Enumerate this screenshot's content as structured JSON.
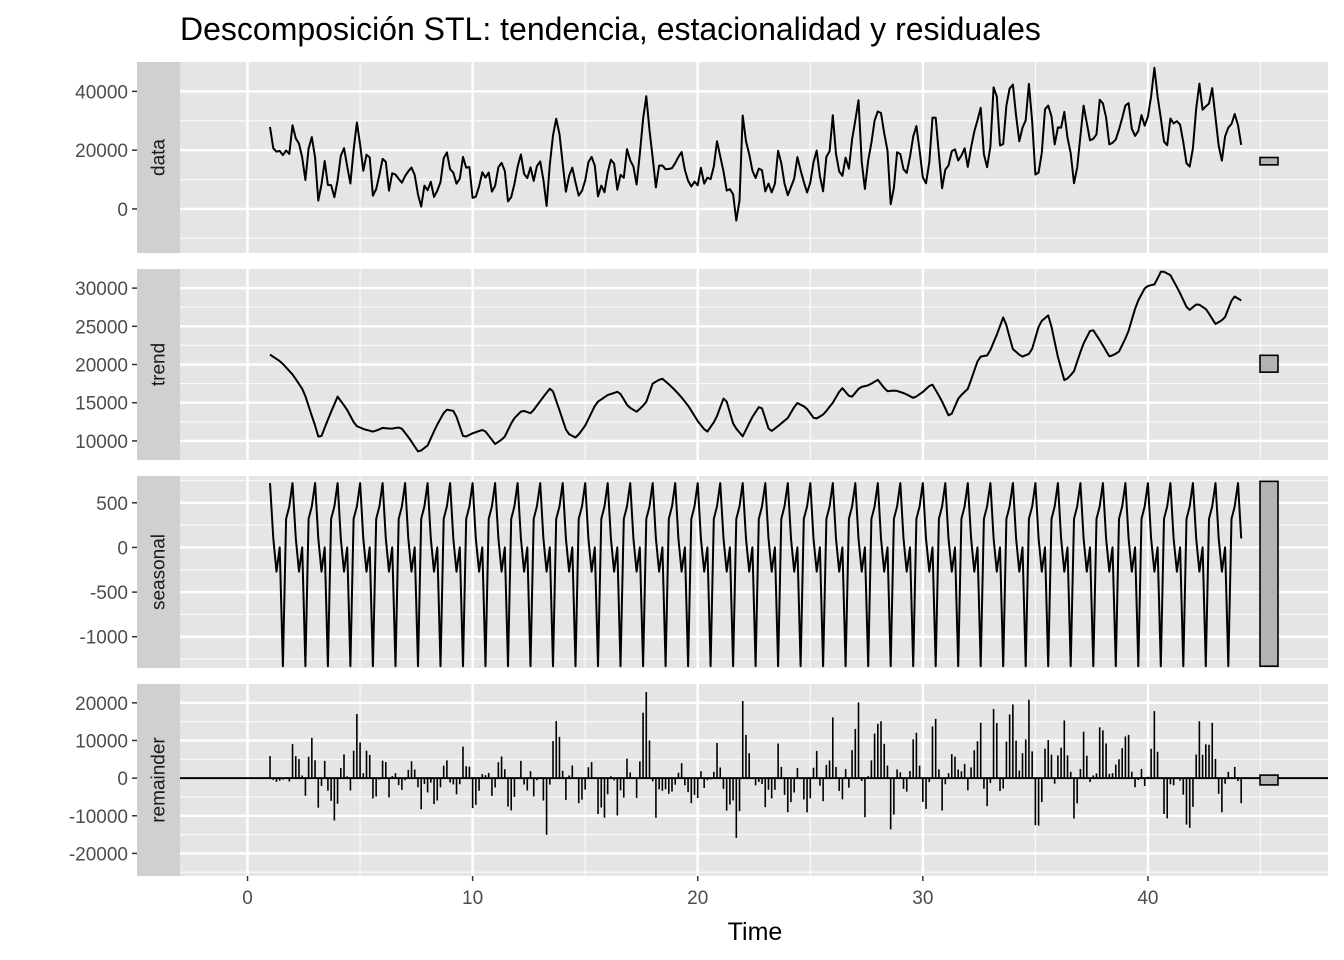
{
  "chart_data": {
    "type": "line",
    "title": "Descomposición STL: tendencia, estacionalidad y residuales",
    "xlabel": "Time",
    "xlim": [
      -3,
      48
    ],
    "x_ticks": [
      0,
      10,
      20,
      30,
      40
    ],
    "frequency": 7,
    "x_start": 1,
    "n_points": 303,
    "grid": true,
    "theme": "ggplot2 grey",
    "colors": {
      "panel_bg": "#e5e5e5",
      "grid": "#ffffff",
      "strip_bg": "#d0d0d0",
      "line": "#000000",
      "range_bar": "#b3b3b3",
      "tick": "#333333"
    },
    "panels": [
      {
        "name": "data",
        "ylim": [
          -15000,
          50000
        ],
        "y_ticks": [
          0,
          20000,
          40000
        ],
        "range_bar": [
          15000,
          17500
        ],
        "knots": [
          [
            1,
            26500
          ],
          [
            1.4,
            15000
          ],
          [
            1.7,
            18000
          ],
          [
            2,
            25000
          ],
          [
            2.3,
            19000
          ],
          [
            2.6,
            10500
          ],
          [
            2.9,
            30000
          ],
          [
            3.1,
            3500
          ],
          [
            3.4,
            15500
          ],
          [
            3.6,
            3000
          ],
          [
            4,
            10000
          ],
          [
            4.3,
            22500
          ],
          [
            4.6,
            8500
          ],
          [
            4.9,
            29000
          ],
          [
            5.2,
            10000
          ],
          [
            5.4,
            23000
          ],
          [
            5.6,
            5000
          ],
          [
            6,
            17000
          ],
          [
            6.3,
            6000
          ],
          [
            6.6,
            15000
          ],
          [
            6.9,
            4000
          ],
          [
            7.2,
            17000
          ],
          [
            7.6,
            2000
          ],
          [
            8,
            10000
          ],
          [
            8.4,
            3000
          ],
          [
            8.8,
            22500
          ],
          [
            9.2,
            6000
          ],
          [
            9.6,
            21000
          ],
          [
            10.1,
            5000
          ],
          [
            10.5,
            15000
          ],
          [
            10.9,
            5000
          ],
          [
            11.3,
            15000
          ],
          [
            11.7,
            3000
          ],
          [
            12.1,
            18000
          ],
          [
            12.5,
            9000
          ],
          [
            12.9,
            15000
          ],
          [
            13.3,
            5000
          ],
          [
            13.7,
            32500
          ],
          [
            14.1,
            7500
          ],
          [
            14.5,
            10000
          ],
          [
            14.9,
            5000
          ],
          [
            15.3,
            17500
          ],
          [
            15.7,
            3500
          ],
          [
            16.1,
            18500
          ],
          [
            16.5,
            6000
          ],
          [
            16.9,
            19000
          ],
          [
            17.3,
            12500
          ],
          [
            17.7,
            36500
          ],
          [
            18.1,
            5000
          ],
          [
            18.5,
            19000
          ],
          [
            18.9,
            13000
          ],
          [
            19.3,
            18000
          ],
          [
            19.7,
            3500
          ],
          [
            20.1,
            14000
          ],
          [
            20.5,
            8000
          ],
          [
            20.9,
            23000
          ],
          [
            21.3,
            8000
          ],
          [
            21.6,
            8500
          ],
          [
            21.8,
            -14000
          ],
          [
            22,
            30000
          ],
          [
            22.4,
            10000
          ],
          [
            22.8,
            15000
          ],
          [
            23.2,
            3500
          ],
          [
            23.6,
            20000
          ],
          [
            24,
            8000
          ],
          [
            24.4,
            16000
          ],
          [
            24.8,
            5000
          ],
          [
            25.2,
            18000
          ],
          [
            25.6,
            9000
          ],
          [
            26,
            27500
          ],
          [
            26.4,
            10000
          ],
          [
            26.8,
            17500
          ],
          [
            27.1,
            39000
          ],
          [
            27.4,
            5000
          ],
          [
            27.8,
            27000
          ],
          [
            28.2,
            36000
          ],
          [
            28.6,
            3500
          ],
          [
            28.9,
            22000
          ],
          [
            29.3,
            10000
          ],
          [
            29.7,
            30500
          ],
          [
            30.1,
            5000
          ],
          [
            30.5,
            32000
          ],
          [
            30.9,
            5000
          ],
          [
            31.3,
            24500
          ],
          [
            31.7,
            14000
          ],
          [
            32.1,
            20000
          ],
          [
            32.5,
            36000
          ],
          [
            32.9,
            7000
          ],
          [
            33.2,
            44000
          ],
          [
            33.5,
            15000
          ],
          [
            33.9,
            46000
          ],
          [
            34.3,
            21000
          ],
          [
            34.7,
            40000
          ],
          [
            35.1,
            8000
          ],
          [
            35.5,
            36000
          ],
          [
            35.9,
            20000
          ],
          [
            36.3,
            37000
          ],
          [
            36.7,
            5000
          ],
          [
            37.1,
            33500
          ],
          [
            37.5,
            19000
          ],
          [
            37.9,
            36000
          ],
          [
            38.3,
            24000
          ],
          [
            38.7,
            29000
          ],
          [
            39.1,
            37500
          ],
          [
            39.5,
            24000
          ],
          [
            39.9,
            32000
          ],
          [
            40.3,
            46000
          ],
          [
            40.7,
            22000
          ],
          [
            41.1,
            30000
          ],
          [
            41.5,
            27000
          ],
          [
            41.9,
            12000
          ],
          [
            42.3,
            44500
          ],
          [
            42.6,
            29000
          ],
          [
            42.9,
            40000
          ],
          [
            43.3,
            14000
          ],
          [
            43.6,
            30000
          ],
          [
            44,
            27000
          ],
          [
            44.4,
            13000
          ]
        ]
      },
      {
        "name": "trend",
        "ylim": [
          7500,
          32500
        ],
        "y_ticks": [
          10000,
          15000,
          20000,
          25000,
          30000
        ],
        "range_bar": [
          19000,
          21200
        ],
        "knots": [
          [
            1,
            21300
          ],
          [
            1.5,
            20300
          ],
          [
            2,
            18700
          ],
          [
            2.5,
            16500
          ],
          [
            3,
            12000
          ],
          [
            3.2,
            10000
          ],
          [
            3.6,
            13000
          ],
          [
            4,
            15800
          ],
          [
            4.4,
            14200
          ],
          [
            4.8,
            12000
          ],
          [
            5.2,
            11500
          ],
          [
            5.6,
            11200
          ],
          [
            6,
            11700
          ],
          [
            6.4,
            11600
          ],
          [
            6.8,
            11800
          ],
          [
            7.2,
            10300
          ],
          [
            7.6,
            8500
          ],
          [
            8,
            9400
          ],
          [
            8.4,
            12000
          ],
          [
            8.8,
            14100
          ],
          [
            9.2,
            13900
          ],
          [
            9.6,
            10400
          ],
          [
            10,
            11000
          ],
          [
            10.5,
            11500
          ],
          [
            11,
            9600
          ],
          [
            11.4,
            10400
          ],
          [
            11.8,
            12800
          ],
          [
            12.2,
            14000
          ],
          [
            12.6,
            13600
          ],
          [
            13.1,
            15600
          ],
          [
            13.5,
            17100
          ],
          [
            13.8,
            14500
          ],
          [
            14.2,
            11000
          ],
          [
            14.6,
            10400
          ],
          [
            15,
            12000
          ],
          [
            15.5,
            15000
          ],
          [
            16,
            16000
          ],
          [
            16.5,
            16500
          ],
          [
            16.9,
            14500
          ],
          [
            17.3,
            13800
          ],
          [
            17.7,
            15000
          ],
          [
            18,
            17500
          ],
          [
            18.4,
            18200
          ],
          [
            18.8,
            17200
          ],
          [
            19.2,
            16000
          ],
          [
            19.6,
            14500
          ],
          [
            20,
            12600
          ],
          [
            20.4,
            11100
          ],
          [
            20.8,
            12800
          ],
          [
            21.2,
            16000
          ],
          [
            21.6,
            12000
          ],
          [
            22,
            10600
          ],
          [
            22.4,
            13000
          ],
          [
            22.8,
            14800
          ],
          [
            23.2,
            11100
          ],
          [
            23.6,
            12000
          ],
          [
            24,
            13000
          ],
          [
            24.4,
            15000
          ],
          [
            24.8,
            14400
          ],
          [
            25.2,
            12800
          ],
          [
            25.6,
            13500
          ],
          [
            26,
            15000
          ],
          [
            26.4,
            17000
          ],
          [
            26.8,
            15600
          ],
          [
            27.2,
            17000
          ],
          [
            27.6,
            17300
          ],
          [
            28,
            18000
          ],
          [
            28.4,
            16500
          ],
          [
            28.8,
            16600
          ],
          [
            29.2,
            16200
          ],
          [
            29.6,
            15600
          ],
          [
            30,
            16400
          ],
          [
            30.4,
            17500
          ],
          [
            30.8,
            15500
          ],
          [
            31.2,
            13000
          ],
          [
            31.6,
            15700
          ],
          [
            32,
            16800
          ],
          [
            32.5,
            21000
          ],
          [
            32.9,
            21200
          ],
          [
            33.3,
            24000
          ],
          [
            33.6,
            26400
          ],
          [
            34,
            22000
          ],
          [
            34.4,
            21000
          ],
          [
            34.8,
            21500
          ],
          [
            35.2,
            25500
          ],
          [
            35.6,
            26500
          ],
          [
            36,
            21000
          ],
          [
            36.3,
            17800
          ],
          [
            36.7,
            19000
          ],
          [
            37.1,
            22500
          ],
          [
            37.5,
            24800
          ],
          [
            37.9,
            23000
          ],
          [
            38.3,
            21000
          ],
          [
            38.7,
            21600
          ],
          [
            39.1,
            24000
          ],
          [
            39.5,
            28000
          ],
          [
            39.9,
            30200
          ],
          [
            40.3,
            30500
          ],
          [
            40.6,
            32300
          ],
          [
            41,
            31700
          ],
          [
            41.4,
            29500
          ],
          [
            41.8,
            27000
          ],
          [
            42.2,
            28000
          ],
          [
            42.6,
            27200
          ],
          [
            43,
            25300
          ],
          [
            43.4,
            26000
          ],
          [
            43.8,
            29000
          ],
          [
            44.4,
            27900
          ]
        ]
      },
      {
        "name": "seasonal",
        "ylim": [
          -1350,
          800
        ],
        "y_ticks": [
          -1000,
          -500,
          0,
          500
        ],
        "range_bar": [
          -1330,
          740
        ],
        "period_values": [
          720,
          100,
          -270,
          0,
          -1330,
          320,
          460
        ]
      },
      {
        "name": "remainder",
        "ylim": [
          -26000,
          25000
        ],
        "y_ticks": [
          -20000,
          -10000,
          0,
          10000,
          20000
        ],
        "range_bar": [
          -1800,
          800
        ],
        "baseline": 0
      }
    ]
  }
}
